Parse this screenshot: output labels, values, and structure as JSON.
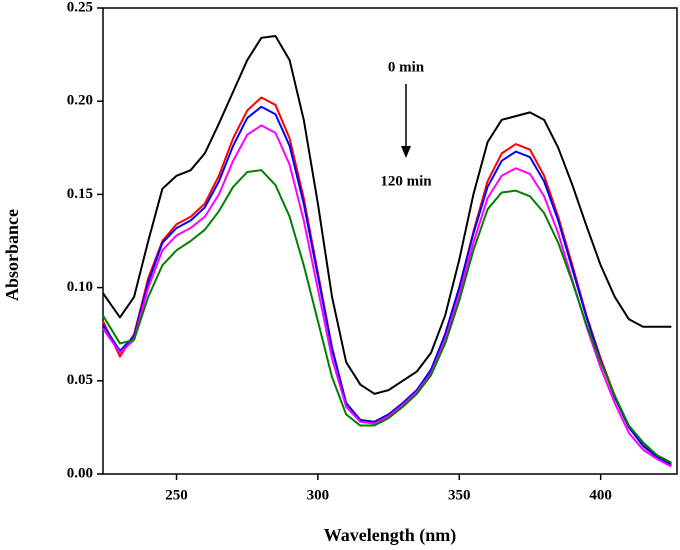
{
  "chart_data": {
    "type": "line",
    "x_label": "Wavelength (nm)",
    "y_label": "Absorbance",
    "annotations": [
      "0 min",
      "120 min"
    ],
    "x": [
      224,
      230,
      235,
      240,
      245,
      250,
      255,
      260,
      265,
      270,
      275,
      280,
      285,
      290,
      295,
      300,
      305,
      310,
      315,
      320,
      325,
      330,
      335,
      340,
      345,
      350,
      355,
      360,
      365,
      370,
      375,
      380,
      385,
      390,
      395,
      400,
      405,
      410,
      415,
      420,
      425
    ],
    "series": [
      {
        "color": "#000000",
        "values": [
          0.097,
          0.084,
          0.095,
          0.125,
          0.153,
          0.16,
          0.163,
          0.172,
          0.188,
          0.205,
          0.222,
          0.234,
          0.235,
          0.222,
          0.19,
          0.145,
          0.095,
          0.06,
          0.048,
          0.043,
          0.045,
          0.05,
          0.055,
          0.065,
          0.085,
          0.115,
          0.15,
          0.178,
          0.19,
          0.192,
          0.194,
          0.19,
          0.175,
          0.155,
          0.133,
          0.112,
          0.095,
          0.083,
          0.079,
          0.079,
          0.079
        ]
      },
      {
        "color": "#ff0000",
        "values": [
          0.082,
          0.063,
          0.075,
          0.105,
          0.125,
          0.134,
          0.138,
          0.145,
          0.16,
          0.18,
          0.195,
          0.202,
          0.198,
          0.18,
          0.148,
          0.108,
          0.068,
          0.038,
          0.029,
          0.028,
          0.032,
          0.038,
          0.045,
          0.055,
          0.075,
          0.1,
          0.13,
          0.157,
          0.172,
          0.177,
          0.174,
          0.16,
          0.138,
          0.112,
          0.085,
          0.062,
          0.042,
          0.025,
          0.016,
          0.01,
          0.006
        ]
      },
      {
        "color": "#0000ff",
        "values": [
          0.08,
          0.066,
          0.074,
          0.103,
          0.124,
          0.132,
          0.136,
          0.143,
          0.157,
          0.176,
          0.191,
          0.197,
          0.193,
          0.176,
          0.145,
          0.106,
          0.067,
          0.038,
          0.029,
          0.028,
          0.032,
          0.038,
          0.045,
          0.056,
          0.075,
          0.1,
          0.129,
          0.154,
          0.168,
          0.173,
          0.17,
          0.157,
          0.136,
          0.11,
          0.084,
          0.061,
          0.041,
          0.025,
          0.015,
          0.009,
          0.005
        ]
      },
      {
        "color": "#ff00ff",
        "values": [
          0.078,
          0.065,
          0.072,
          0.1,
          0.12,
          0.128,
          0.132,
          0.138,
          0.15,
          0.168,
          0.182,
          0.187,
          0.183,
          0.166,
          0.136,
          0.099,
          0.062,
          0.036,
          0.028,
          0.027,
          0.031,
          0.037,
          0.044,
          0.054,
          0.072,
          0.096,
          0.124,
          0.148,
          0.16,
          0.164,
          0.161,
          0.149,
          0.129,
          0.104,
          0.079,
          0.057,
          0.038,
          0.022,
          0.013,
          0.008,
          0.004
        ]
      },
      {
        "color": "#008000",
        "values": [
          0.085,
          0.07,
          0.072,
          0.095,
          0.112,
          0.12,
          0.125,
          0.131,
          0.141,
          0.154,
          0.162,
          0.163,
          0.155,
          0.138,
          0.112,
          0.082,
          0.052,
          0.032,
          0.026,
          0.026,
          0.03,
          0.036,
          0.043,
          0.053,
          0.07,
          0.093,
          0.12,
          0.142,
          0.151,
          0.152,
          0.149,
          0.14,
          0.124,
          0.103,
          0.08,
          0.06,
          0.042,
          0.026,
          0.017,
          0.01,
          0.006
        ]
      }
    ],
    "xlim": [
      224,
      427
    ],
    "xticks": [
      250,
      300,
      350,
      400
    ],
    "ylim": [
      0,
      0.25
    ],
    "yticks": [
      {
        "value": 0,
        "label": "0.00"
      },
      {
        "value": 0.05,
        "label": "0.05"
      },
      {
        "value": 0.1,
        "label": "0.10"
      },
      {
        "value": 0.15,
        "label": "0.15"
      },
      {
        "value": 0.2,
        "label": "0.20"
      },
      {
        "value": 0.25,
        "label": "0.25"
      }
    ],
    "grid": false
  }
}
